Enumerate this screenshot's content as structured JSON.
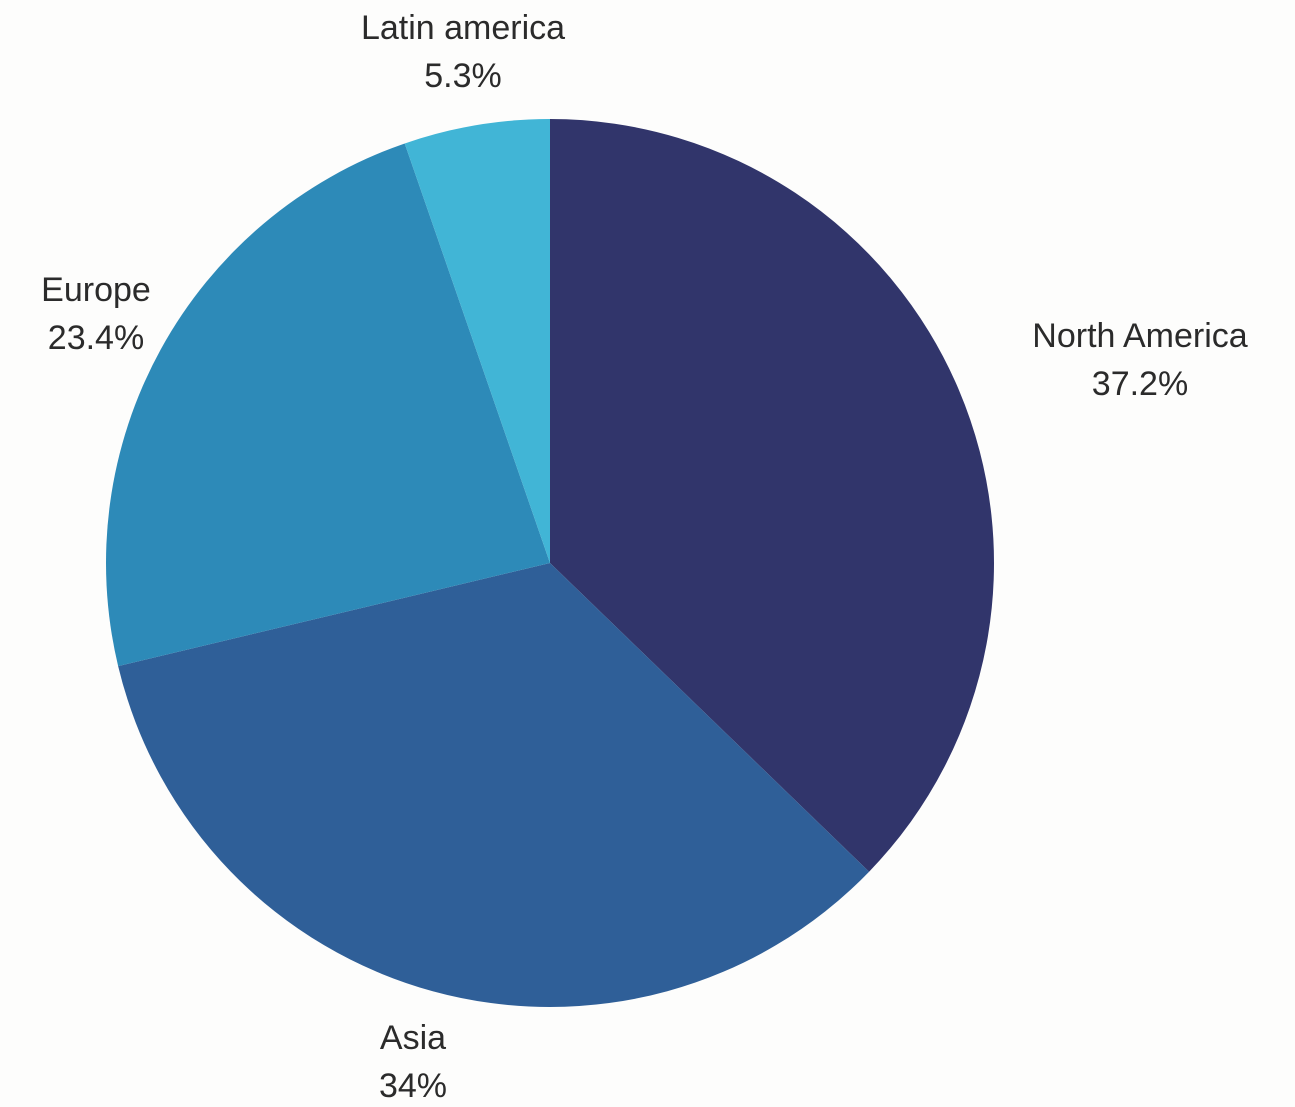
{
  "chart_data": {
    "type": "pie",
    "slices": [
      {
        "label": "North America",
        "value": 37.2,
        "display": "37.2%",
        "color": "#31356b"
      },
      {
        "label": "Asia",
        "value": 34,
        "display": "34%",
        "color": "#2f5f98"
      },
      {
        "label": "Europe",
        "value": 23.4,
        "display": "23.4%",
        "color": "#2d8ab8"
      },
      {
        "label": "Latin america",
        "value": 5.3,
        "display": "5.3%",
        "color": "#41b5d6"
      }
    ],
    "start_angle": "12 o'clock",
    "direction": "clockwise"
  }
}
